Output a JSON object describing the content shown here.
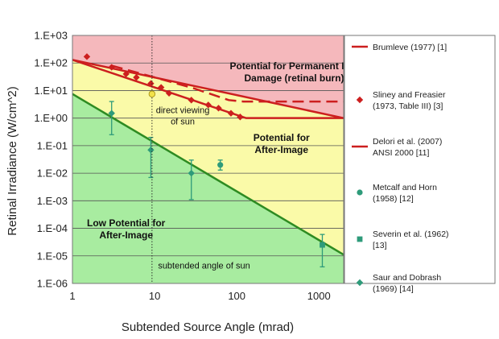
{
  "chart_data": {
    "type": "scatter",
    "xscale": "log",
    "yscale": "log",
    "xlim": [
      1,
      2000
    ],
    "ylim": [
      1e-06,
      1000
    ],
    "xlabel": "Subtended Source Angle (mrad)",
    "ylabel": "Retinal Irradiance (W/cm^2)",
    "x_ticks": [
      1,
      10,
      100,
      1000
    ],
    "x_tick_labels": [
      "1",
      "10",
      "100",
      "1000"
    ],
    "y_ticks": [
      1e-06,
      1e-05,
      0.0001,
      0.001,
      0.01,
      0.1,
      1,
      10,
      100,
      1000
    ],
    "y_tick_labels": [
      "1.E-06",
      "1.E-05",
      "1.E-04",
      "1.E-03",
      "1.E-02",
      "1.E-01",
      "1.E+00",
      "1.E+01",
      "1.E+02",
      "1.E+03"
    ],
    "regions": [
      {
        "label_lines": [
          "Potential for Permanent Eye",
          "Damage (retinal burn)"
        ],
        "color": "#f5b8bc",
        "label_x": 500,
        "label_y": 60
      },
      {
        "label_lines": [
          "Potential for",
          "After-Image"
        ],
        "color": "#fafaa8",
        "label_x": 350,
        "label_y": 0.15
      },
      {
        "label_lines": [
          "Low Potential for",
          "After-Image"
        ],
        "color": "#a8eca0",
        "label_x": 4.5,
        "label_y": 0.00012
      }
    ],
    "boundary_lines": {
      "upper": {
        "x": [
          1,
          2000
        ],
        "y": [
          130,
          1
        ],
        "color": "#cc1f1f"
      },
      "lower": {
        "x": [
          1,
          2000
        ],
        "y": [
          7.5,
          1.1e-05
        ],
        "color": "#2e8b22"
      }
    },
    "series": [
      {
        "name": "Brumleve (1977) [1]",
        "marker": "line",
        "style": "solid",
        "color": "#cc1f1f",
        "x": [
          1,
          130,
          2000
        ],
        "y": [
          130,
          1,
          1
        ]
      },
      {
        "name": "Sliney and Freasier (1973, Table III) [3]",
        "marker": "diamond",
        "color": "#cc1f1f",
        "x": [
          1.5,
          3,
          4.5,
          6,
          9,
          12,
          15,
          28,
          45,
          60,
          85,
          110
        ],
        "y": [
          170,
          70,
          40,
          30,
          18,
          13,
          8,
          4.5,
          3,
          2.3,
          1.5,
          1.1
        ]
      },
      {
        "name": "Delori et al. (2007) ANSI 2000 [11]",
        "marker": "line",
        "style": "dashed",
        "color": "#cc1f1f",
        "x": [
          3,
          10,
          30,
          80,
          120,
          2000
        ],
        "y": [
          80,
          30,
          12,
          4.5,
          4,
          4
        ]
      },
      {
        "name": "Metcalf and Horn (1958) [12]",
        "marker": "circle",
        "color": "#2e9b7a",
        "x": [
          63
        ],
        "y": [
          0.02
        ],
        "err_low": [
          0.013
        ],
        "err_high": [
          0.03
        ]
      },
      {
        "name": "Severin et al. (1962) [13]",
        "marker": "square",
        "color": "#2e9b7a",
        "x": [
          1100
        ],
        "y": [
          2.5e-05
        ],
        "err_low": [
          4e-06
        ],
        "err_high": [
          6e-05
        ]
      },
      {
        "name": "Saur and Dobrash (1969) [14]",
        "marker": "diamond",
        "color": "#2e9b7a",
        "x": [
          3,
          9,
          28
        ],
        "y": [
          1.5,
          0.07,
          0.01
        ],
        "err_low": [
          0.25,
          0.007,
          0.0011
        ],
        "err_high": [
          4,
          0.2,
          0.03
        ]
      }
    ],
    "sun_point": {
      "x": 9.3,
      "y": 7.5,
      "color": "#f2e24a"
    },
    "sun_angle_line": {
      "x": 9.3
    },
    "annotations": [
      {
        "lines": [
          "direct viewing",
          "of sun"
        ],
        "x": 22,
        "y": 1.5
      },
      {
        "lines": [
          "subtended angle of sun"
        ],
        "x": 11,
        "y": 3.5e-06
      }
    ],
    "legend_position": "right"
  }
}
